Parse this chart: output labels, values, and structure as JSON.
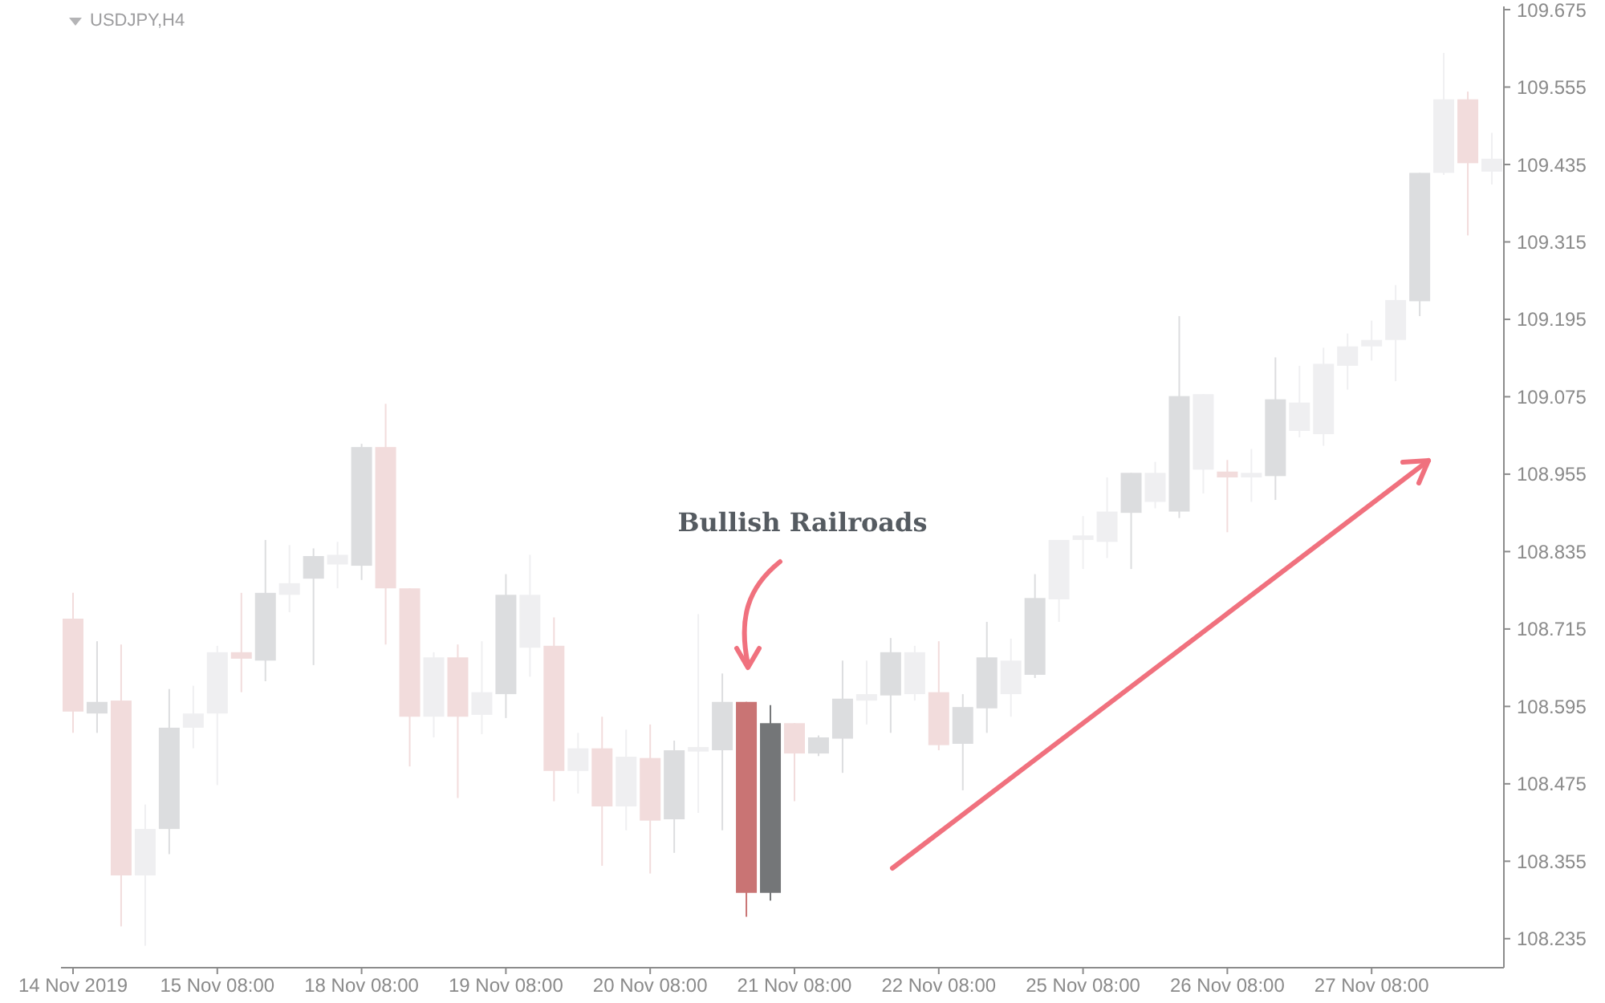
{
  "chart_data": {
    "type": "candlestick",
    "title": "USDJPY,H4",
    "categories": [
      "14 Nov 2019",
      null,
      null,
      null,
      null,
      null,
      "15 Nov 08:00",
      null,
      null,
      null,
      null,
      null,
      "18 Nov 08:00",
      null,
      null,
      null,
      null,
      null,
      "19 Nov 08:00",
      null,
      null,
      null,
      null,
      null,
      "20 Nov 08:00",
      null,
      null,
      null,
      null,
      null,
      "21 Nov 08:00",
      null,
      null,
      null,
      null,
      null,
      "22 Nov 08:00",
      null,
      null,
      null,
      null,
      null,
      "25 Nov 08:00",
      null,
      null,
      null,
      null,
      null,
      "26 Nov 08:00",
      null,
      null,
      null,
      null,
      null,
      "27 Nov 08:00",
      null,
      null,
      null,
      null,
      null
    ],
    "ohlc": [
      [
        108.731,
        108.771,
        108.554,
        108.587
      ],
      [
        108.584,
        108.696,
        108.554,
        108.602
      ],
      [
        108.604,
        108.691,
        108.254,
        108.333
      ],
      [
        108.333,
        108.443,
        108.224,
        108.405
      ],
      [
        108.405,
        108.622,
        108.366,
        108.562
      ],
      [
        108.562,
        108.627,
        108.53,
        108.584
      ],
      [
        108.584,
        108.689,
        108.473,
        108.679
      ],
      [
        108.679,
        108.771,
        108.617,
        108.669
      ],
      [
        108.666,
        108.853,
        108.634,
        108.771
      ],
      [
        108.768,
        108.845,
        108.741,
        108.786
      ],
      [
        108.793,
        108.84,
        108.659,
        108.828
      ],
      [
        108.815,
        108.85,
        108.778,
        108.83
      ],
      [
        108.813,
        109.002,
        108.791,
        108.997
      ],
      [
        108.997,
        109.064,
        108.691,
        108.778
      ],
      [
        108.778,
        108.778,
        108.502,
        108.579
      ],
      [
        108.579,
        108.679,
        108.547,
        108.671
      ],
      [
        108.671,
        108.691,
        108.453,
        108.579
      ],
      [
        108.582,
        108.696,
        108.552,
        108.617
      ],
      [
        108.614,
        108.8,
        108.577,
        108.768
      ],
      [
        108.686,
        108.83,
        108.641,
        108.768
      ],
      [
        108.689,
        108.733,
        108.448,
        108.495
      ],
      [
        108.495,
        108.554,
        108.46,
        108.53
      ],
      [
        108.53,
        108.579,
        108.348,
        108.44
      ],
      [
        108.44,
        108.559,
        108.403,
        108.517
      ],
      [
        108.515,
        108.567,
        108.336,
        108.418
      ],
      [
        108.42,
        108.542,
        108.368,
        108.527
      ],
      [
        108.525,
        108.738,
        108.43,
        108.532
      ],
      [
        108.527,
        108.646,
        108.403,
        108.602
      ],
      [
        108.602,
        108.602,
        108.269,
        108.306
      ],
      [
        108.306,
        108.597,
        108.294,
        108.569
      ],
      [
        108.569,
        108.569,
        108.448,
        108.522
      ],
      [
        108.522,
        108.55,
        108.518,
        108.547
      ],
      [
        108.545,
        108.666,
        108.492,
        108.607
      ],
      [
        108.604,
        108.666,
        108.567,
        108.614
      ],
      [
        108.612,
        108.701,
        108.554,
        108.679
      ],
      [
        108.614,
        108.689,
        108.604,
        108.679
      ],
      [
        108.617,
        108.696,
        108.527,
        108.535
      ],
      [
        108.537,
        108.614,
        108.465,
        108.594
      ],
      [
        108.592,
        108.726,
        108.554,
        108.671
      ],
      [
        108.614,
        108.7,
        108.579,
        108.666
      ],
      [
        108.644,
        108.8,
        108.639,
        108.763
      ],
      [
        108.761,
        108.853,
        108.726,
        108.853
      ],
      [
        108.853,
        108.89,
        108.808,
        108.86
      ],
      [
        108.85,
        108.95,
        108.825,
        108.897
      ],
      [
        108.895,
        108.957,
        108.808,
        108.957
      ],
      [
        108.912,
        108.974,
        108.902,
        108.957
      ],
      [
        108.897,
        109.2,
        108.887,
        109.076
      ],
      [
        108.962,
        109.079,
        108.925,
        109.079
      ],
      [
        108.959,
        108.977,
        108.865,
        108.95
      ],
      [
        108.95,
        108.994,
        108.912,
        108.957
      ],
      [
        108.952,
        109.136,
        108.915,
        109.071
      ],
      [
        109.022,
        109.123,
        109.012,
        109.066
      ],
      [
        109.017,
        109.151,
        108.999,
        109.126
      ],
      [
        109.123,
        109.173,
        109.086,
        109.153
      ],
      [
        109.153,
        109.193,
        109.131,
        109.163
      ],
      [
        109.163,
        109.248,
        109.099,
        109.225
      ],
      [
        109.223,
        109.422,
        109.2,
        109.422
      ],
      [
        109.422,
        109.608,
        109.419,
        109.536
      ],
      [
        109.536,
        109.548,
        109.325,
        109.437
      ],
      [
        109.424,
        109.484,
        109.404,
        109.444
      ]
    ],
    "colors": [
      "#f2dcdc",
      "#dcdddf",
      "#f2dcdc",
      "#efeff1",
      "#dcdddf",
      "#efeff1",
      "#efeff1",
      "#f2dcdc",
      "#dcdddf",
      "#efeff1",
      "#dcdddf",
      "#efeff1",
      "#dcdddf",
      "#f2dcdc",
      "#f2dcdc",
      "#efeff1",
      "#f2dcdc",
      "#efeff1",
      "#dcdddf",
      "#efeff1",
      "#f2dcdc",
      "#efeff1",
      "#f2dcdc",
      "#efeff1",
      "#f2dcdc",
      "#dcdddf",
      "#efeff1",
      "#dcdddf",
      "#c97474",
      "#747678",
      "#f2dcdc",
      "#dcdddf",
      "#dcdddf",
      "#efeff1",
      "#dcdddf",
      "#efeff1",
      "#f2dcdc",
      "#dcdddf",
      "#dcdddf",
      "#efeff1",
      "#dcdddf",
      "#efeff1",
      "#efeff1",
      "#efeff1",
      "#dcdddf",
      "#efeff1",
      "#dcdddf",
      "#efeff1",
      "#f2dcdc",
      "#efeff1",
      "#dcdddf",
      "#efeff1",
      "#efeff1",
      "#efeff1",
      "#efeff1",
      "#efeff1",
      "#dcdddf",
      "#efeff1",
      "#f2dcdc",
      "#efeff1"
    ],
    "ylim": [
      108.19,
      109.68
    ],
    "yticks": [
      109.675,
      109.555,
      109.435,
      109.315,
      109.195,
      109.075,
      108.955,
      108.835,
      108.715,
      108.595,
      108.475,
      108.355,
      108.235
    ],
    "annotations": [
      "Bullish Railroads"
    ]
  }
}
